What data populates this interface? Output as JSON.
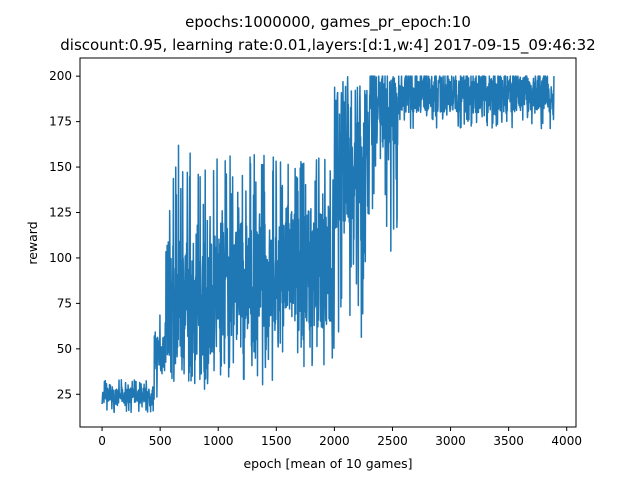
{
  "chart_data": {
    "type": "line",
    "title_line1": "epochs:1000000, games_pr_epoch:10",
    "title_line2": "discount:0.95, learning rate:0.01,layers:[d:1,w:4] 2017-09-15_09:46:32",
    "xlabel": "epoch [mean of 10 games]",
    "ylabel": "reward",
    "xlim": [
      -190,
      4080
    ],
    "ylim": [
      7,
      210
    ],
    "xticks": [
      0,
      500,
      1000,
      1500,
      2000,
      2500,
      3000,
      3500,
      4000
    ],
    "yticks": [
      25,
      50,
      75,
      100,
      125,
      150,
      175,
      200
    ],
    "grid": false,
    "series": [
      {
        "color": "#1f77b4",
        "x_range": [
          0,
          3890
        ],
        "segments": [
          {
            "x": [
              0,
              450
            ],
            "low": 15,
            "high": 33,
            "typical_low": 20,
            "typical_high": 28
          },
          {
            "x": [
              450,
              550
            ],
            "low": 20,
            "high": 75,
            "typical_low": 35,
            "typical_high": 60
          },
          {
            "x": [
              550,
              1000
            ],
            "low": 27,
            "high": 162,
            "typical_low": 45,
            "typical_high": 110
          },
          {
            "x": [
              1000,
              1500
            ],
            "low": 30,
            "high": 157,
            "typical_low": 55,
            "typical_high": 120
          },
          {
            "x": [
              1500,
              2000
            ],
            "low": 37,
            "high": 157,
            "typical_low": 60,
            "typical_high": 130
          },
          {
            "x": [
              2000,
              2300
            ],
            "low": 55,
            "high": 200,
            "typical_low": 110,
            "typical_high": 190
          },
          {
            "x": [
              2300,
              2550
            ],
            "low": 100,
            "high": 200,
            "typical_low": 160,
            "typical_high": 200
          },
          {
            "x": [
              2550,
              3890
            ],
            "low": 171,
            "high": 200,
            "typical_low": 180,
            "typical_high": 200
          }
        ]
      }
    ]
  }
}
